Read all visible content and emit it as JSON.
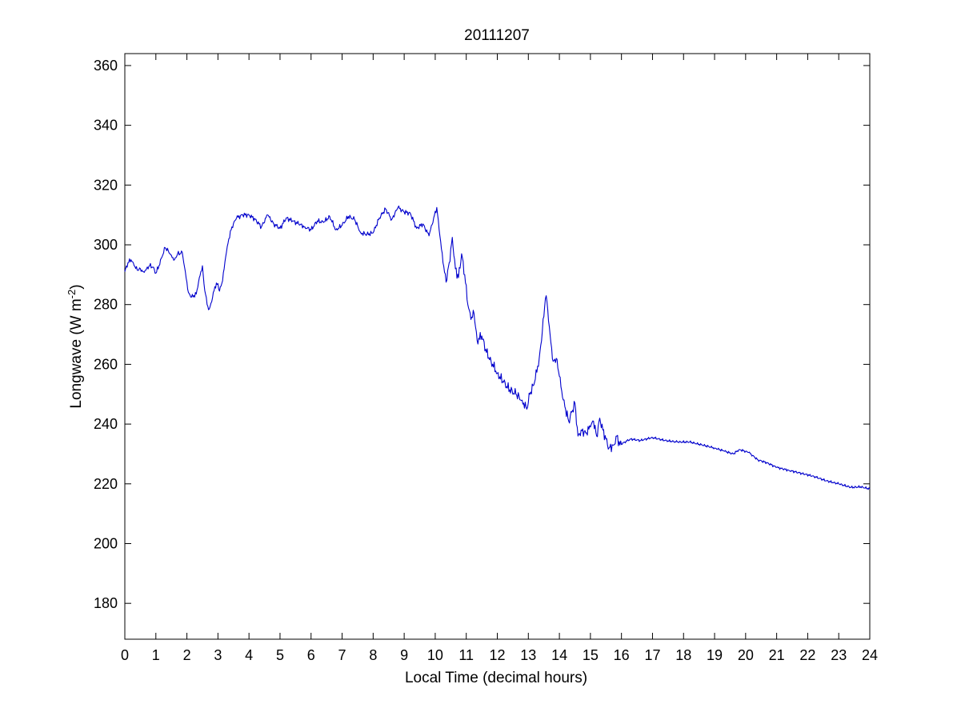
{
  "chart_data": {
    "type": "line",
    "title": "20111207",
    "xlabel": "Local Time (decimal hours)",
    "ylabel": {
      "main": "Longwave (W m",
      "superscript": "-2",
      "close": ")"
    },
    "xlim": [
      0,
      24
    ],
    "ylim": [
      168,
      364
    ],
    "xticks": [
      0,
      1,
      2,
      3,
      4,
      5,
      6,
      7,
      8,
      9,
      10,
      11,
      12,
      13,
      14,
      15,
      16,
      17,
      18,
      19,
      20,
      21,
      22,
      23,
      24
    ],
    "yticks": [
      180,
      200,
      220,
      240,
      260,
      280,
      300,
      320,
      340,
      360
    ],
    "grid": false,
    "legend": "none",
    "line_color": "#0000cc",
    "series": [
      {
        "points": [
          [
            0.0,
            291
          ],
          [
            0.1,
            294
          ],
          [
            0.2,
            295
          ],
          [
            0.3,
            293
          ],
          [
            0.4,
            291.5
          ],
          [
            0.5,
            292
          ],
          [
            0.6,
            291
          ],
          [
            0.7,
            292
          ],
          [
            0.8,
            293
          ],
          [
            0.9,
            292.5
          ],
          [
            1.0,
            290.5
          ],
          [
            1.1,
            293
          ],
          [
            1.2,
            296
          ],
          [
            1.3,
            299
          ],
          [
            1.4,
            298
          ],
          [
            1.5,
            296.5
          ],
          [
            1.6,
            295
          ],
          [
            1.7,
            297
          ],
          [
            1.8,
            297
          ],
          [
            1.85,
            297.5
          ],
          [
            1.95,
            291
          ],
          [
            2.05,
            284
          ],
          [
            2.15,
            282.5
          ],
          [
            2.3,
            283.5
          ],
          [
            2.4,
            289
          ],
          [
            2.5,
            293
          ],
          [
            2.55,
            287
          ],
          [
            2.65,
            280
          ],
          [
            2.72,
            278.5
          ],
          [
            2.8,
            281
          ],
          [
            2.9,
            286
          ],
          [
            3.0,
            287
          ],
          [
            3.05,
            284.5
          ],
          [
            3.15,
            288
          ],
          [
            3.25,
            296
          ],
          [
            3.35,
            302
          ],
          [
            3.45,
            306
          ],
          [
            3.6,
            309
          ],
          [
            3.8,
            310
          ],
          [
            4.0,
            310
          ],
          [
            4.2,
            308.5
          ],
          [
            4.4,
            306
          ],
          [
            4.6,
            310
          ],
          [
            4.8,
            307
          ],
          [
            5.0,
            305.5
          ],
          [
            5.2,
            309
          ],
          [
            5.4,
            308
          ],
          [
            5.6,
            307
          ],
          [
            5.8,
            306
          ],
          [
            6.0,
            305
          ],
          [
            6.2,
            308
          ],
          [
            6.4,
            307.5
          ],
          [
            6.6,
            309.5
          ],
          [
            6.8,
            305
          ],
          [
            7.0,
            306.5
          ],
          [
            7.2,
            309.5
          ],
          [
            7.4,
            308.5
          ],
          [
            7.6,
            304
          ],
          [
            7.8,
            303.5
          ],
          [
            8.0,
            304
          ],
          [
            8.2,
            309
          ],
          [
            8.4,
            312
          ],
          [
            8.6,
            308.5
          ],
          [
            8.8,
            312.5
          ],
          [
            9.0,
            311
          ],
          [
            9.2,
            310.5
          ],
          [
            9.4,
            305.5
          ],
          [
            9.6,
            307
          ],
          [
            9.8,
            303
          ],
          [
            9.95,
            309
          ],
          [
            10.05,
            312.5
          ],
          [
            10.15,
            303
          ],
          [
            10.25,
            294
          ],
          [
            10.35,
            287.5
          ],
          [
            10.45,
            294
          ],
          [
            10.55,
            302.5
          ],
          [
            10.65,
            292
          ],
          [
            10.75,
            289
          ],
          [
            10.85,
            297
          ],
          [
            10.95,
            290
          ],
          [
            11.05,
            280
          ],
          [
            11.15,
            275
          ],
          [
            11.25,
            277
          ],
          [
            11.35,
            268
          ],
          [
            11.5,
            269.5
          ],
          [
            11.65,
            264
          ],
          [
            11.8,
            261
          ],
          [
            12.0,
            257
          ],
          [
            12.2,
            254
          ],
          [
            12.4,
            251.5
          ],
          [
            12.6,
            250
          ],
          [
            12.8,
            248
          ],
          [
            12.95,
            245
          ],
          [
            13.05,
            250
          ],
          [
            13.2,
            254
          ],
          [
            13.35,
            262
          ],
          [
            13.45,
            271
          ],
          [
            13.55,
            282
          ],
          [
            13.6,
            281
          ],
          [
            13.7,
            270
          ],
          [
            13.8,
            261
          ],
          [
            13.9,
            262
          ],
          [
            14.0,
            256
          ],
          [
            14.1,
            249
          ],
          [
            14.2,
            245
          ],
          [
            14.3,
            241
          ],
          [
            14.4,
            244
          ],
          [
            14.5,
            247
          ],
          [
            14.6,
            236
          ],
          [
            14.7,
            238
          ],
          [
            14.85,
            237
          ],
          [
            15.0,
            239
          ],
          [
            15.1,
            241
          ],
          [
            15.2,
            236
          ],
          [
            15.3,
            242
          ],
          [
            15.4,
            238
          ],
          [
            15.5,
            235
          ],
          [
            15.6,
            232
          ],
          [
            15.75,
            233
          ],
          [
            15.85,
            236
          ],
          [
            15.95,
            233
          ],
          [
            16.1,
            234
          ],
          [
            16.3,
            235
          ],
          [
            16.6,
            234.5
          ],
          [
            17.0,
            235.5
          ],
          [
            17.4,
            234.5
          ],
          [
            17.8,
            234
          ],
          [
            18.2,
            234
          ],
          [
            18.6,
            233
          ],
          [
            19.0,
            232
          ],
          [
            19.3,
            231
          ],
          [
            19.6,
            230
          ],
          [
            19.8,
            231.5
          ],
          [
            20.1,
            230.5
          ],
          [
            20.4,
            228
          ],
          [
            20.7,
            227
          ],
          [
            21.0,
            225.5
          ],
          [
            21.4,
            224.5
          ],
          [
            21.8,
            223.5
          ],
          [
            22.2,
            222.5
          ],
          [
            22.6,
            221
          ],
          [
            23.0,
            220
          ],
          [
            23.4,
            218.8
          ],
          [
            23.7,
            219
          ],
          [
            24.0,
            218.3
          ]
        ]
      }
    ]
  }
}
